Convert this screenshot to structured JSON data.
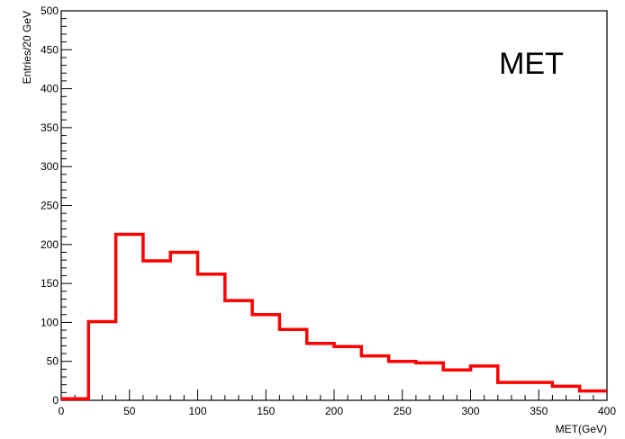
{
  "chart_data": {
    "type": "bar",
    "title": "MET",
    "xlabel": "MET(GeV)",
    "ylabel": "Entries/20 GeV",
    "xlim": [
      0,
      400
    ],
    "ylim": [
      0,
      500
    ],
    "bin_width": 20,
    "x_ticks": [
      "0",
      "50",
      "100",
      "150",
      "200",
      "250",
      "300",
      "350",
      "400"
    ],
    "y_ticks": [
      "0",
      "50",
      "100",
      "150",
      "200",
      "250",
      "300",
      "350",
      "400",
      "450",
      "500"
    ],
    "bin_edges": [
      0,
      20,
      40,
      60,
      80,
      100,
      120,
      140,
      160,
      180,
      200,
      220,
      240,
      260,
      280,
      300,
      320,
      340,
      360,
      380,
      400
    ],
    "values": [
      2,
      101,
      213,
      179,
      190,
      162,
      128,
      110,
      91,
      73,
      69,
      57,
      50,
      48,
      39,
      44,
      23,
      23,
      18,
      12
    ],
    "series_color": "#ff0000",
    "grid": false,
    "legend": "none"
  }
}
